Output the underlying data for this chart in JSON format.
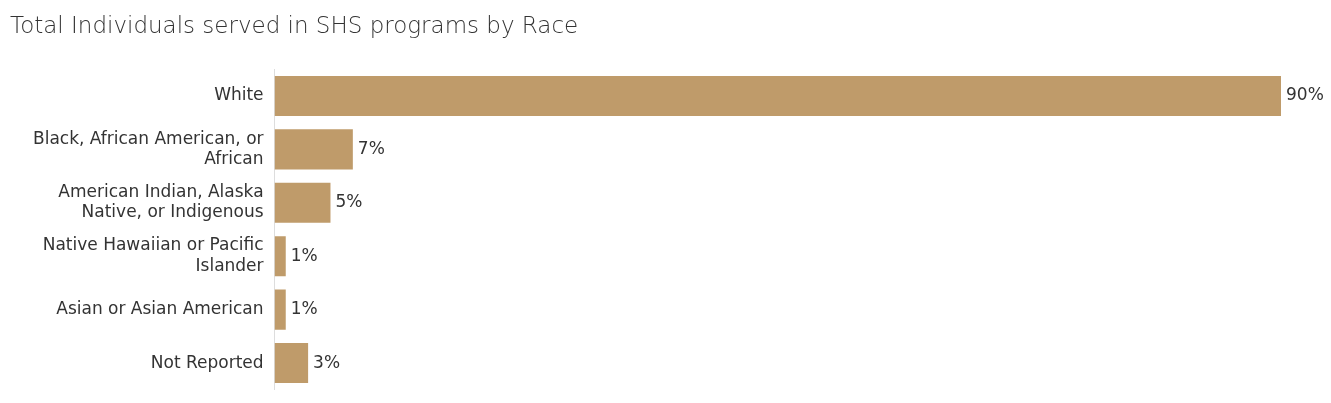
{
  "chart_data": {
    "type": "bar",
    "orientation": "horizontal",
    "title": "Total Individuals served in SHS programs by Race",
    "categories": [
      "White",
      "Black, African American, or African",
      "American Indian, Alaska Native, or Indigenous",
      "Native Hawaiian or Pacific Islander",
      "Asian or Asian American",
      "Not Reported"
    ],
    "values": [
      90,
      7,
      5,
      1,
      1,
      3
    ],
    "value_labels": [
      "90%",
      "7%",
      "5%",
      "1%",
      "1%",
      "3%"
    ],
    "color": "#bf9b6a",
    "legend": false,
    "tick_labels": "y"
  }
}
